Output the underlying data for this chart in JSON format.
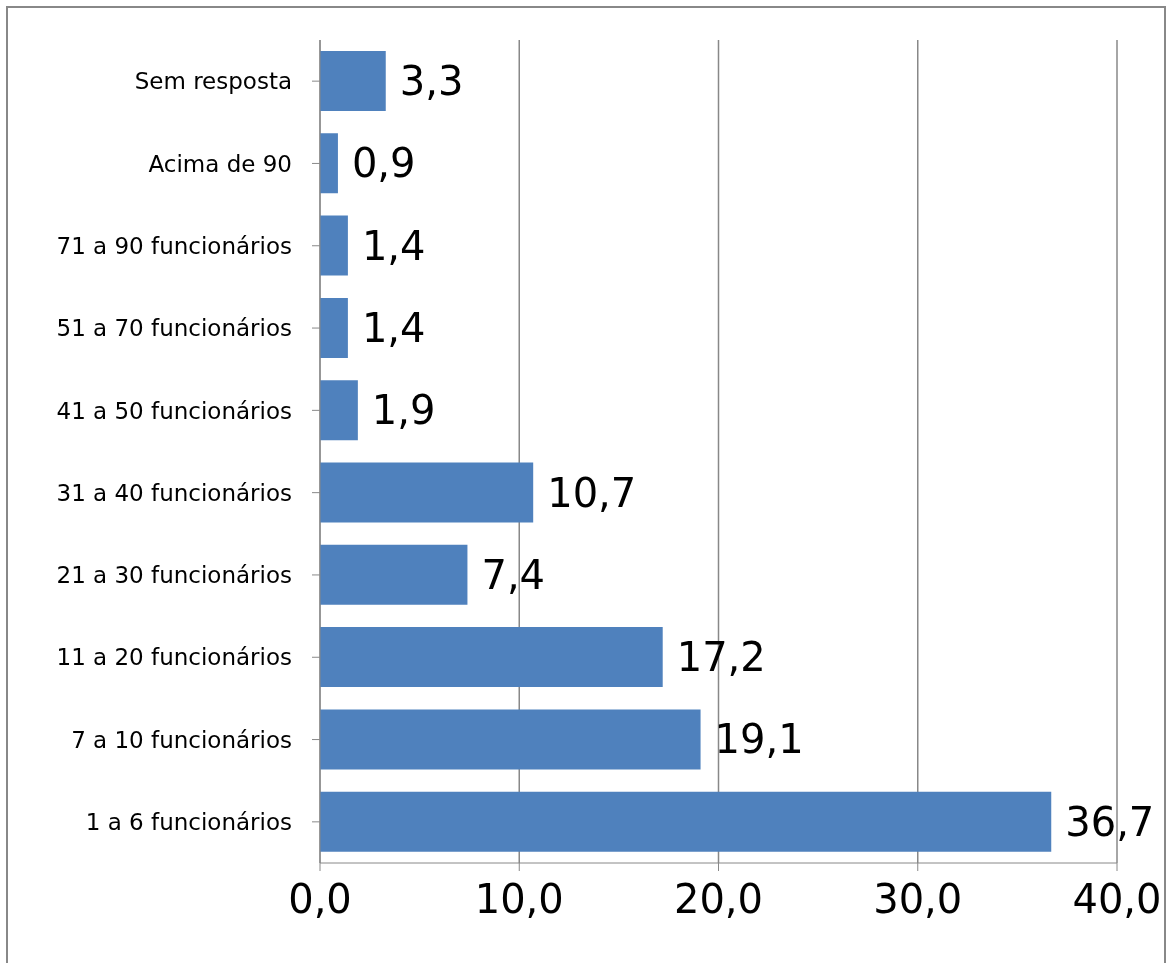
{
  "chart_data": {
    "type": "bar",
    "orientation": "horizontal",
    "categories": [
      "Sem resposta",
      "Acima de 90",
      "71 a 90 funcionários",
      "51 a 70 funcionários",
      "41 a 50 funcionários",
      "31 a 40 funcionários",
      "21 a 30 funcionários",
      "11 a 20 funcionários",
      "7 a 10 funcionários",
      "1 a 6 funcionários"
    ],
    "values": [
      3.3,
      0.9,
      1.4,
      1.4,
      1.9,
      10.7,
      7.4,
      17.2,
      19.1,
      36.7
    ],
    "value_labels": [
      "3,3",
      "0,9",
      "1,4",
      "1,4",
      "1,9",
      "10,7",
      "7,4",
      "17,2",
      "19,1",
      "36,7"
    ],
    "color": "#4f81bd",
    "xlim": [
      0,
      40
    ],
    "xticks": [
      {
        "value": 0,
        "label": "0,0"
      },
      {
        "value": 10,
        "label": "10,0"
      },
      {
        "value": 20,
        "label": "20,0"
      },
      {
        "value": 30,
        "label": "30,0"
      },
      {
        "value": 40,
        "label": "40,0"
      }
    ],
    "grid": "x",
    "legend": false
  }
}
